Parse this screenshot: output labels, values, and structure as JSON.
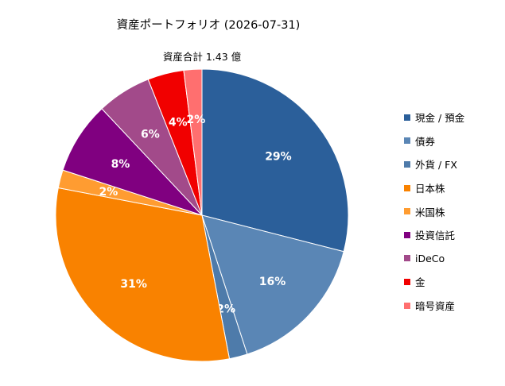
{
  "chart_data": {
    "type": "pie",
    "title": "資産ポートフォリオ (2026-07-31)",
    "subtitle": "資産合計 1.43 億",
    "start_angle_deg": 90,
    "direction": "clockwise",
    "legend_position": "right",
    "slices": [
      {
        "label": "現金 / 預金",
        "value": 29,
        "display": "29%",
        "color": "#2B5F9A"
      },
      {
        "label": "債券",
        "value": 16,
        "display": "16%",
        "color": "#5A86B5"
      },
      {
        "label": "外貨 / FX",
        "value": 2,
        "display": "2%",
        "color": "#4E7BAA"
      },
      {
        "label": "日本株",
        "value": 31,
        "display": "31%",
        "color": "#F98200"
      },
      {
        "label": "米国株",
        "value": 2,
        "display": "2%",
        "color": "#FF9C31"
      },
      {
        "label": "投資信託",
        "value": 8,
        "display": "8%",
        "color": "#800080"
      },
      {
        "label": "iDeCo",
        "value": 6,
        "display": "6%",
        "color": "#A24A8A"
      },
      {
        "label": "金",
        "value": 4,
        "display": "4%",
        "color": "#F10000"
      },
      {
        "label": "暗号資産",
        "value": 2,
        "display": "2%",
        "color": "#FF6F6F"
      }
    ]
  }
}
